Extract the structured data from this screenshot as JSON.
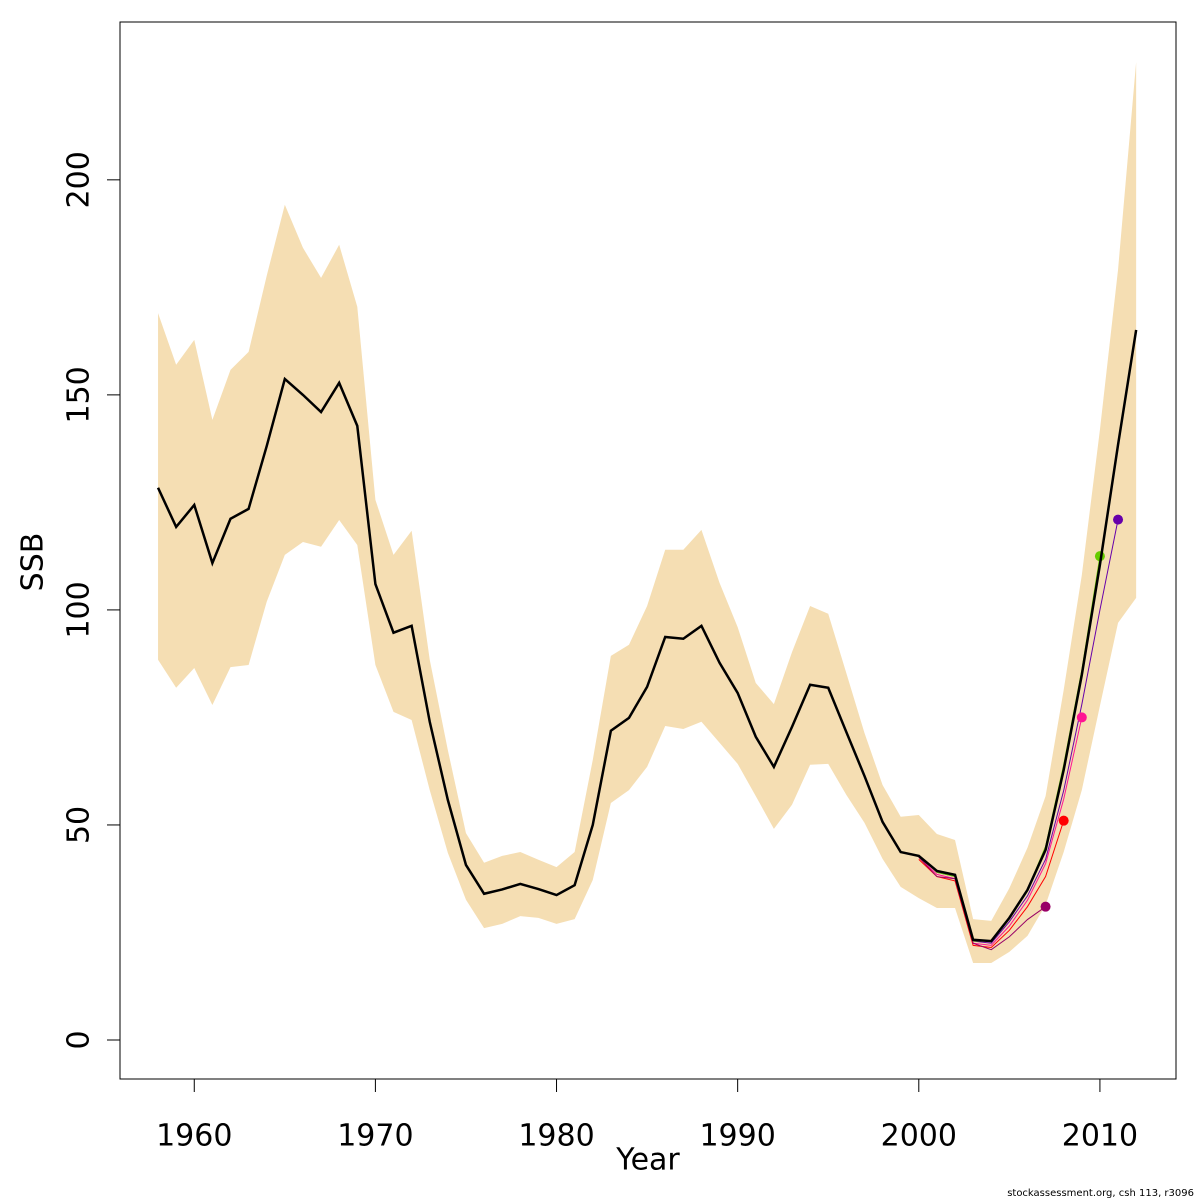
{
  "chart_data": {
    "type": "line",
    "x_label": "Year",
    "y_label": "SSB",
    "footer": "stockassessment.org, csh 113, r3096",
    "xlim": [
      1955.9,
      2014.2
    ],
    "ylim": [
      -9.07,
      236.7
    ],
    "xticks": [
      1960,
      1970,
      1980,
      1990,
      2000,
      2010
    ],
    "yticks": [
      0,
      50,
      100,
      150,
      200
    ],
    "x": [
      1958,
      1959,
      1960,
      1961,
      1962,
      1963,
      1964,
      1965,
      1966,
      1967,
      1968,
      1969,
      1970,
      1971,
      1972,
      1973,
      1974,
      1975,
      1976,
      1977,
      1978,
      1979,
      1980,
      1981,
      1982,
      1983,
      1984,
      1985,
      1986,
      1987,
      1988,
      1989,
      1990,
      1991,
      1992,
      1993,
      1994,
      1995,
      1996,
      1997,
      1998,
      1999,
      2000,
      2001,
      2002,
      2003,
      2004,
      2005,
      2006,
      2007,
      2008,
      2009,
      2010,
      2011,
      2012
    ],
    "band": {
      "color": "#f5deb3",
      "upper": [
        169,
        157,
        162.8,
        144.2,
        155.8,
        160,
        177.7,
        194.2,
        184.2,
        177.2,
        184.9,
        170.5,
        125.6,
        112.8,
        118.4,
        88.4,
        67.4,
        48.1,
        41.2,
        42.8,
        43.7,
        41.9,
        40.2,
        43.7,
        65.1,
        89.3,
        91.9,
        100.9,
        114,
        114,
        118.6,
        106.3,
        96,
        83,
        78.1,
        90.2,
        100.9,
        99.1,
        85.3,
        71.4,
        59.3,
        51.9,
        52.3,
        47.9,
        46.5,
        28.1,
        27.7,
        35.3,
        44.7,
        56.7,
        81.4,
        108.1,
        141.9,
        179.1,
        227.4
      ],
      "lower": [
        88.4,
        81.9,
        86.5,
        77.9,
        86.7,
        87.2,
        101.9,
        112.8,
        115.8,
        114.7,
        120.9,
        115.1,
        87.2,
        76.3,
        74.4,
        58.1,
        43.5,
        32.6,
        26,
        27,
        28.8,
        28.4,
        27,
        28.1,
        37.2,
        55.1,
        58.1,
        63.5,
        73,
        72.3,
        74,
        69.1,
        64.2,
        56.7,
        49.1,
        54.7,
        64,
        64.2,
        57,
        50.5,
        42.1,
        35.6,
        33,
        30.7,
        30.7,
        17.9,
        17.9,
        20.5,
        24.2,
        31.4,
        43.7,
        58.1,
        77.7,
        97,
        102.8
      ]
    },
    "series": [
      {
        "color": "#000000",
        "values": [
          128.4,
          119.3,
          124.4,
          110.9,
          121.2,
          123.5,
          138.1,
          153.7,
          150,
          146,
          152.8,
          142.8,
          106,
          94.7,
          96.3,
          74,
          55.8,
          40.7,
          34,
          35,
          36.3,
          35.1,
          33.7,
          36,
          50,
          71.9,
          74.9,
          82.1,
          93.7,
          93.3,
          96.3,
          87.7,
          80.7,
          70.5,
          63.5,
          72.8,
          82.6,
          81.9,
          71.6,
          61.4,
          50.7,
          43.7,
          42.8,
          39.3,
          38.4,
          23.3,
          23,
          28.4,
          34.9,
          44.2,
          62.8,
          84.9,
          110.5,
          138.4,
          165.1
        ]
      },
      {
        "color": "#990066",
        "end_marker": true,
        "x": [
          2000,
          2001,
          2002,
          2003,
          2004,
          2005,
          2006,
          2007
        ],
        "values": [
          42.5,
          38,
          37.5,
          22.5,
          21,
          24,
          28,
          31
        ]
      },
      {
        "color": "#ff0000",
        "end_marker": true,
        "x": [
          2000,
          2001,
          2002,
          2003,
          2004,
          2005,
          2006,
          2007,
          2008
        ],
        "values": [
          42,
          38,
          37,
          22,
          21.5,
          25.5,
          31,
          38,
          51
        ]
      },
      {
        "color": "#ff1493",
        "end_marker": true,
        "x": [
          2000,
          2001,
          2002,
          2003,
          2004,
          2005,
          2006,
          2007,
          2008,
          2009
        ],
        "values": [
          42.5,
          38.5,
          37.5,
          22.5,
          22,
          26.5,
          32.5,
          41,
          56,
          75
        ]
      },
      {
        "color": "#66cc00",
        "end_marker": true,
        "x": [
          2000,
          2001,
          2002,
          2003,
          2004,
          2005,
          2006,
          2007,
          2008,
          2009,
          2010
        ],
        "values": [
          43,
          39,
          38,
          23,
          23,
          28.5,
          35,
          45,
          64,
          86,
          112.5
        ]
      },
      {
        "color": "#6600aa",
        "end_marker": true,
        "x": [
          2000,
          2001,
          2002,
          2003,
          2004,
          2005,
          2006,
          2007,
          2008,
          2009,
          2010,
          2011
        ],
        "values": [
          43,
          39,
          38,
          23,
          22.5,
          27.5,
          33.5,
          42,
          58,
          78,
          100,
          121
        ]
      }
    ]
  }
}
